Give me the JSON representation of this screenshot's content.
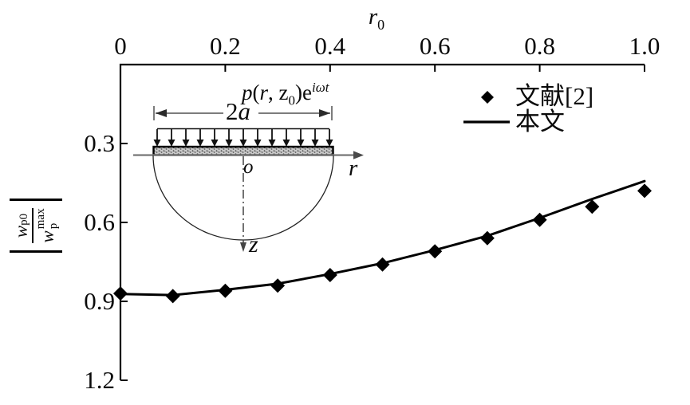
{
  "figure": {
    "x_axis": {
      "title_base": "r",
      "title_sub": "0",
      "ticks": [
        0,
        0.2,
        0.4,
        0.6,
        0.8,
        1.0
      ],
      "tick_labels": [
        "0",
        "0.2",
        "0.4",
        "0.6",
        "0.8",
        "1.0"
      ]
    },
    "y_axis": {
      "ticks": [
        0.3,
        0.6,
        0.9,
        1.2
      ],
      "tick_labels": [
        "0.3",
        "0.6",
        "0.9",
        "1.2"
      ],
      "label": {
        "numerator_base": "w",
        "numerator_sub": "p0",
        "denominator_base": "w",
        "denominator_sup": "max",
        "denominator_sub": "p"
      }
    },
    "legend": [
      {
        "marker": "diamond",
        "label": "文献[2]"
      },
      {
        "marker": "line",
        "label": "本文"
      }
    ],
    "inset": {
      "load_label": {
        "p": "p",
        "open": "(",
        "r": "r",
        "comma": ", ",
        "z": "z",
        "z_sub": "0",
        "close": ")e",
        "sup": "iωt"
      },
      "dim_label": {
        "coef": "2",
        "symbol": "a"
      },
      "origin_label": "o",
      "r_axis_label": "r",
      "z_axis_label": "z"
    },
    "colors": {
      "ink": "#000000",
      "inset_gray": "#7d7d7d"
    }
  },
  "chart_data": {
    "type": "line",
    "title": "",
    "xlabel": "r0",
    "ylabel": "|w_p0 / w_p^max|",
    "xlim": [
      0,
      1.0
    ],
    "ylim": [
      0,
      1.2
    ],
    "y_axis_inverted": true,
    "x_axis_position": "top",
    "grid": false,
    "legend_position": "top-right",
    "x": [
      0,
      0.1,
      0.2,
      0.3,
      0.4,
      0.5,
      0.6,
      0.7,
      0.8,
      0.9,
      1.0
    ],
    "x_ticks": [
      0,
      0.2,
      0.4,
      0.6,
      0.8,
      1.0
    ],
    "y_ticks": [
      0.3,
      0.6,
      0.9,
      1.2
    ],
    "series": [
      {
        "name": "文献[2]",
        "type": "scatter",
        "marker": "diamond",
        "color": "#000000",
        "values": [
          0.87,
          0.88,
          0.86,
          0.84,
          0.8,
          0.76,
          0.71,
          0.66,
          0.59,
          0.54,
          0.48
        ]
      },
      {
        "name": "本文",
        "type": "line",
        "color": "#000000",
        "values": [
          0.872,
          0.876,
          0.856,
          0.833,
          0.796,
          0.755,
          0.705,
          0.651,
          0.583,
          0.511,
          0.443
        ]
      }
    ]
  }
}
